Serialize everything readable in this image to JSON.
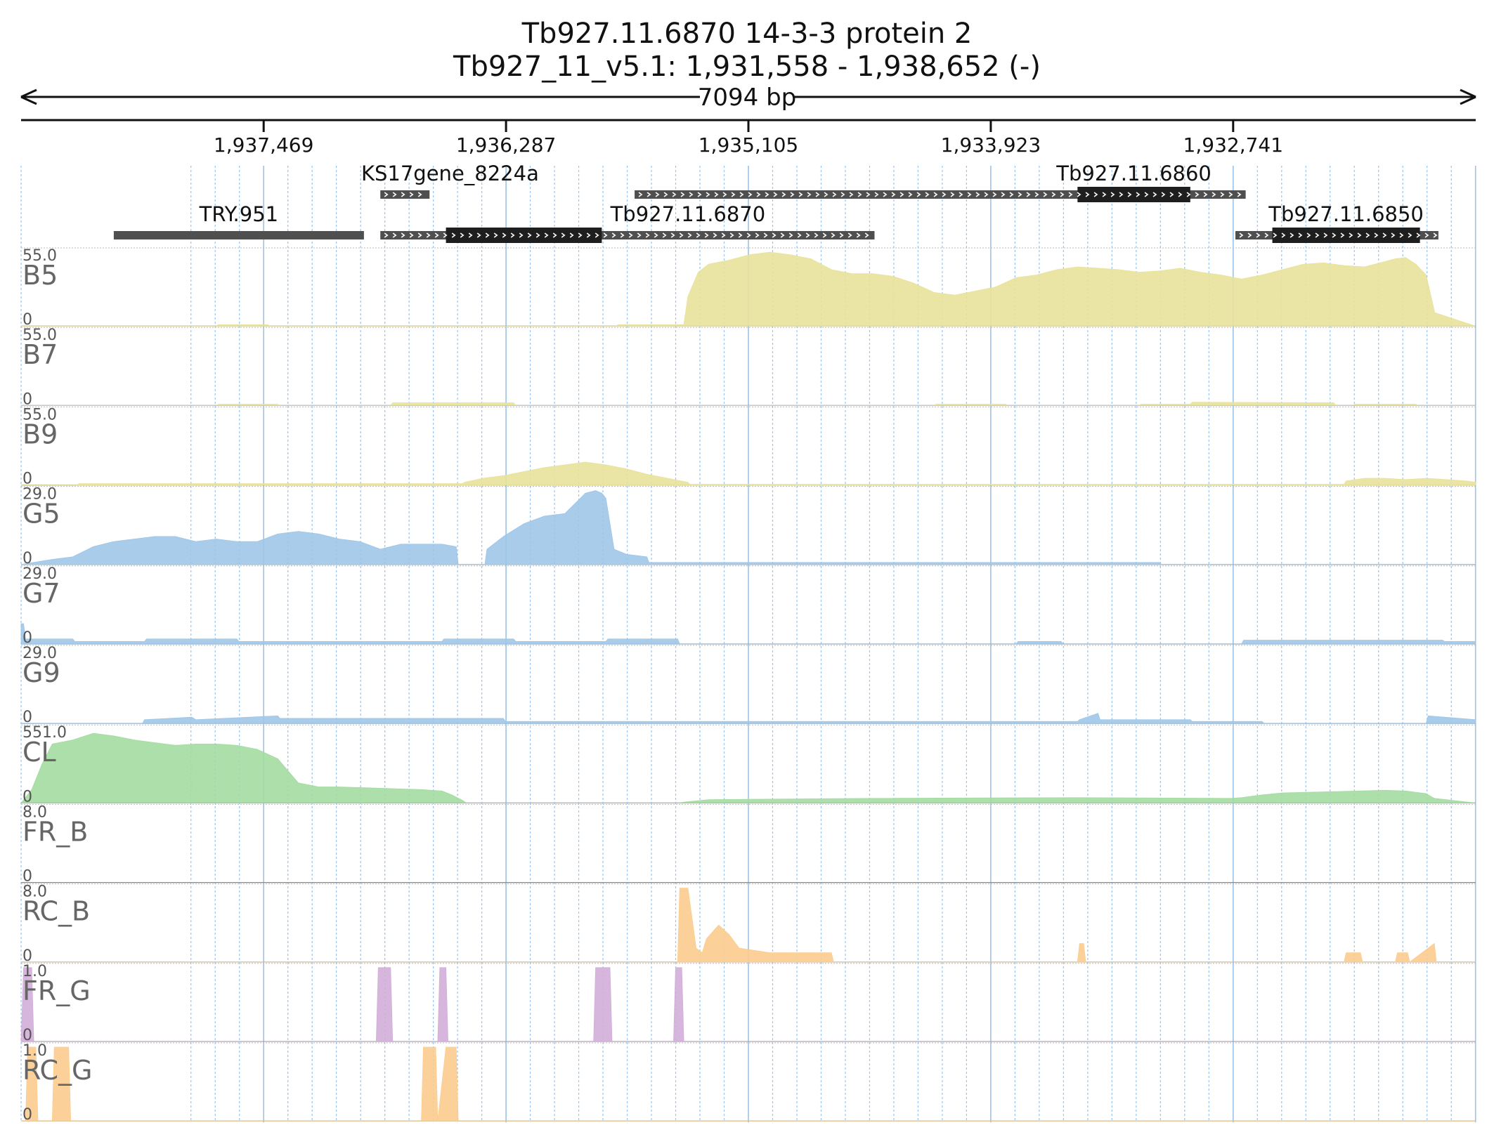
{
  "header": {
    "title_line1": "Tb927.11.6870  14-3-3 protein 2",
    "title_line2": "Tb927_11_v5.1: 1,931,558 - 1,938,652 (-)",
    "span_label": "7094 bp"
  },
  "colors": {
    "yellow": "#e8e29a",
    "blue": "#9ec6e8",
    "green": "#a3dca0",
    "orange": "#fccc8e",
    "purple": "#d2aed8",
    "gene_dark": "#1e1e1e",
    "gene_gray": "#4f4f4f",
    "grid": "#9dc3e6"
  },
  "chart_data": {
    "type": "area",
    "x_range": [
      1938652,
      1931558
    ],
    "x_direction": "reversed (minus strand)",
    "x_ticks": [
      1937469,
      1936287,
      1935105,
      1933923,
      1932741
    ],
    "x_tick_labels": [
      "1,937,469",
      "1,936,287",
      "1,935,105",
      "1,933,923",
      "1,932,741"
    ],
    "genes": [
      {
        "name": "KS17gene_8224a",
        "start": 1936900,
        "end": 1936660,
        "row": 0,
        "strand": "+",
        "cds": null
      },
      {
        "name": "Tb927.11.6860",
        "start": 1935660,
        "end": 1932680,
        "row": 0,
        "strand": "+",
        "cds": [
          1933500,
          1932950
        ]
      },
      {
        "name": "TRY.951",
        "start": 1938200,
        "end": 1936980,
        "row": 1,
        "strand": null,
        "cds": null
      },
      {
        "name": "Tb927.11.6870",
        "start": 1936900,
        "end": 1934490,
        "row": 1,
        "strand": "+",
        "cds": [
          1936580,
          1935820
        ]
      },
      {
        "name": "Tb927.11.6850",
        "start": 1932730,
        "end": 1931740,
        "row": 1,
        "strand": "+",
        "cds": [
          1932550,
          1931830
        ]
      }
    ],
    "tracks": [
      {
        "name": "B5",
        "max": "55.0",
        "min": "0",
        "color": "yellow",
        "x": [
          1938652,
          1937700,
          1937690,
          1937450,
          1937440,
          1935750,
          1935740,
          1935420,
          1935400,
          1935350,
          1935300,
          1935200,
          1935100,
          1935000,
          1934900,
          1934800,
          1934700,
          1934600,
          1934500,
          1934400,
          1934300,
          1934200,
          1934100,
          1934000,
          1933900,
          1933800,
          1933700,
          1933600,
          1933500,
          1933400,
          1933300,
          1933200,
          1933100,
          1933000,
          1932900,
          1932800,
          1932700,
          1932600,
          1932500,
          1932400,
          1932300,
          1932200,
          1932100,
          1932000,
          1931950,
          1931900,
          1931850,
          1931800,
          1931758,
          1931560
        ],
        "y": [
          0,
          0,
          1,
          1,
          0,
          0,
          1,
          1,
          22,
          40,
          46,
          49,
          53,
          55,
          53,
          50,
          42,
          39,
          39,
          37,
          32,
          25,
          23,
          26,
          29,
          36,
          38,
          42,
          44,
          43,
          42,
          40,
          41,
          43,
          40,
          38,
          35,
          38,
          42,
          46,
          47,
          45,
          44,
          48,
          50,
          51,
          46,
          38,
          10,
          0
        ]
      },
      {
        "name": "B7",
        "max": "55.0",
        "min": "0",
        "color": "yellow",
        "x": [
          1938652,
          1937700,
          1937690,
          1937400,
          1937390,
          1936850,
          1936840,
          1936250,
          1936240,
          1938652,
          1934200,
          1934190,
          1933850,
          1933840,
          1933200,
          1933190,
          1932950,
          1932940,
          1932250,
          1932240,
          1932160,
          1932150,
          1931850,
          1931840,
          1931558
        ],
        "y": [
          0,
          0,
          1,
          1,
          0,
          0,
          2,
          2,
          0,
          0,
          0,
          1,
          1,
          0,
          0,
          1,
          1,
          2.5,
          2,
          0,
          0,
          1,
          1,
          0,
          0
        ]
      },
      {
        "name": "B9",
        "max": "55.0",
        "min": "0",
        "color": "yellow",
        "x": [
          1938652,
          1938380,
          1938370,
          1936500,
          1936490,
          1936400,
          1936300,
          1936200,
          1936100,
          1936000,
          1935900,
          1935800,
          1935700,
          1935600,
          1935500,
          1935400,
          1935390,
          1933180,
          1932200,
          1932190,
          1932100,
          1932000,
          1931900,
          1931800,
          1931700,
          1931600,
          1931558
        ],
        "y": [
          0,
          0,
          1,
          1,
          2,
          5,
          7,
          10,
          13,
          15,
          17,
          15,
          12,
          8,
          5,
          2,
          0.5,
          0.5,
          0.5,
          3,
          5,
          5,
          4,
          5,
          4,
          3,
          2
        ]
      },
      {
        "name": "G5",
        "max": "29.0",
        "min": "0",
        "color": "blue",
        "x": [
          1938652,
          1938500,
          1938400,
          1938300,
          1938200,
          1938100,
          1938000,
          1937900,
          1937800,
          1937700,
          1937600,
          1937500,
          1937400,
          1937300,
          1937200,
          1937100,
          1937000,
          1936900,
          1936800,
          1936700,
          1936600,
          1936530,
          1936520,
          1936390,
          1936380,
          1936300,
          1936200,
          1936100,
          1936000,
          1935950,
          1935900,
          1935850,
          1935820,
          1935800,
          1935760,
          1935700,
          1935600,
          1935590,
          1935440,
          1935430,
          1934750,
          1934740,
          1933100,
          1933090,
          1931558
        ],
        "y": [
          0,
          2,
          3,
          7,
          9,
          10,
          11,
          11,
          9,
          10,
          9,
          9,
          12,
          13,
          12,
          10,
          9,
          6,
          8,
          8,
          8,
          7,
          0,
          0,
          6,
          11,
          16,
          19,
          20,
          24,
          28,
          29,
          28,
          26,
          6,
          4,
          3,
          0.8,
          0.8,
          0.8,
          0.8,
          0.8,
          0.8,
          0,
          0
        ]
      },
      {
        "name": "G7",
        "max": "29.0",
        "min": "0",
        "color": "blue",
        "x": [
          1938652,
          1938640,
          1938630,
          1938400,
          1938390,
          1938050,
          1938040,
          1937600,
          1937590,
          1936600,
          1936590,
          1936250,
          1936240,
          1935800,
          1935790,
          1935450,
          1935440,
          1933800,
          1933790,
          1933580,
          1933570,
          1932700,
          1932690,
          1931720,
          1931710,
          1931558
        ],
        "y": [
          8,
          8,
          2,
          2,
          1,
          1,
          2,
          2,
          1,
          1,
          2,
          2,
          1,
          1,
          2,
          2,
          0,
          0,
          1,
          1,
          0,
          0,
          1.5,
          1.5,
          1,
          1
        ]
      },
      {
        "name": "G9",
        "max": "29.0",
        "min": "0",
        "color": "blue",
        "x": [
          1938652,
          1938060,
          1938050,
          1937820,
          1937800,
          1937400,
          1937390,
          1936300,
          1936290,
          1935400,
          1935390,
          1933500,
          1933490,
          1933400,
          1933390,
          1932950,
          1932940,
          1932600,
          1932590,
          1931800,
          1931790,
          1931558
        ],
        "y": [
          0,
          0,
          1.5,
          2.5,
          1.5,
          3,
          2,
          2,
          0.8,
          0.8,
          0.8,
          0.8,
          1.5,
          4,
          1.5,
          1.5,
          0.8,
          0.8,
          0,
          0,
          3,
          1.5
        ]
      },
      {
        "name": "CL",
        "max": "551.0",
        "min": "0",
        "color": "green",
        "x": [
          1938652,
          1938600,
          1938550,
          1938500,
          1938400,
          1938300,
          1938200,
          1938100,
          1938000,
          1937900,
          1937800,
          1937700,
          1937600,
          1937500,
          1937400,
          1937300,
          1937200,
          1937150,
          1937100,
          1937000,
          1936900,
          1936800,
          1936700,
          1936600,
          1936550,
          1936500,
          1936480,
          1935450,
          1935400,
          1935300,
          1934500,
          1933500,
          1932750,
          1932700,
          1932600,
          1932500,
          1932000,
          1931900,
          1931800,
          1931760,
          1931558
        ],
        "y": [
          0,
          100,
          290,
          440,
          470,
          520,
          500,
          470,
          450,
          430,
          440,
          440,
          430,
          400,
          330,
          150,
          120,
          120,
          120,
          115,
          110,
          105,
          100,
          90,
          60,
          20,
          0,
          0,
          10,
          25,
          35,
          40,
          35,
          40,
          60,
          75,
          95,
          90,
          70,
          35,
          0
        ]
      },
      {
        "name": "FR_B",
        "max": "8.0",
        "min": "0",
        "color": "orange",
        "x": [],
        "y": []
      },
      {
        "name": "RC_B",
        "max": "8.0",
        "min": "0",
        "color": "orange",
        "x": [
          1938652,
          1935450,
          1935440,
          1935400,
          1935360,
          1935330,
          1935310,
          1935250,
          1935200,
          1935150,
          1935000,
          1934700,
          1934690,
          1933500,
          1933490,
          1933470,
          1933460,
          1932200,
          1932190,
          1932120,
          1932110,
          1931950,
          1931940,
          1931890,
          1931880,
          1931760,
          1931750,
          1931558
        ],
        "y": [
          0,
          0,
          8,
          8,
          1.5,
          1,
          2.5,
          4,
          3,
          1.5,
          1,
          1,
          0,
          0,
          2,
          2,
          0,
          0,
          1,
          1,
          0,
          0,
          1,
          1,
          0,
          2,
          0,
          0
        ]
      },
      {
        "name": "FR_G",
        "max": "1.0",
        "min": "0",
        "color": "purple",
        "x": [
          1938652,
          1938640,
          1938630,
          1938600,
          1938590,
          1936920,
          1936910,
          1936850,
          1936840,
          1936620,
          1936610,
          1936580,
          1936570,
          1935860,
          1935850,
          1935780,
          1935770,
          1935470,
          1935460,
          1935430,
          1935420,
          1931558
        ],
        "y": [
          0,
          1,
          1,
          1,
          0,
          0,
          1,
          1,
          0,
          0,
          1,
          1,
          0,
          0,
          1,
          1,
          0,
          0,
          1,
          1,
          0,
          0
        ]
      },
      {
        "name": "RC_G",
        "max": "1.0",
        "min": "0",
        "color": "orange",
        "x": [
          1938652,
          1938630,
          1938620,
          1938580,
          1938570,
          1938500,
          1938490,
          1938420,
          1938410,
          1936700,
          1936690,
          1936630,
          1936620,
          1936580,
          1936570,
          1936530,
          1936520,
          1931558
        ],
        "y": [
          0,
          0,
          1,
          1,
          0,
          0,
          1,
          1,
          0,
          0,
          1,
          1,
          0,
          1,
          1,
          1,
          0,
          0
        ]
      }
    ]
  }
}
